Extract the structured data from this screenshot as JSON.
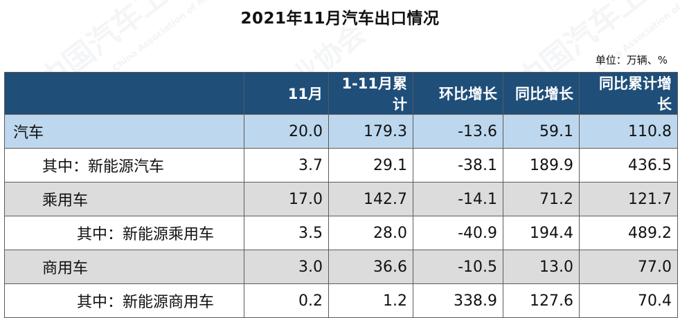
{
  "title": "2021年11月汽车出口情况",
  "unit": "单位：万辆、%",
  "watermark": {
    "cn": "中国汽车工业协会",
    "en": "China Association of Automobile Manufacturers"
  },
  "colors": {
    "header_bg": "#1f4e79",
    "header_text": "#ffffff",
    "total_row_bg": "#bdd7ee",
    "shaded_row_bg": "#dcdcdc"
  },
  "chart_data": {
    "type": "table",
    "columns": [
      "",
      "11月",
      "1-11月累计",
      "环比增长",
      "同比增长",
      "同比累计增长"
    ],
    "rows": [
      {
        "label": "汽车",
        "level": 0,
        "values": [
          "20.0",
          "179.3",
          "-13.6",
          "59.1",
          "110.8"
        ]
      },
      {
        "label": "其中：新能源汽车",
        "level": 1,
        "values": [
          "3.7",
          "29.1",
          "-38.1",
          "189.9",
          "436.5"
        ]
      },
      {
        "label": "乘用车",
        "level": 1,
        "values": [
          "17.0",
          "142.7",
          "-14.1",
          "71.2",
          "121.7"
        ]
      },
      {
        "label": "其中：新能源乘用车",
        "level": 2,
        "values": [
          "3.5",
          "28.0",
          "-40.9",
          "194.4",
          "489.2"
        ]
      },
      {
        "label": "商用车",
        "level": 1,
        "values": [
          "3.0",
          "36.6",
          "-10.5",
          "13.0",
          "77.0"
        ]
      },
      {
        "label": "其中：新能源商用车",
        "level": 2,
        "values": [
          "0.2",
          "1.2",
          "338.9",
          "127.6",
          "70.4"
        ]
      }
    ]
  }
}
